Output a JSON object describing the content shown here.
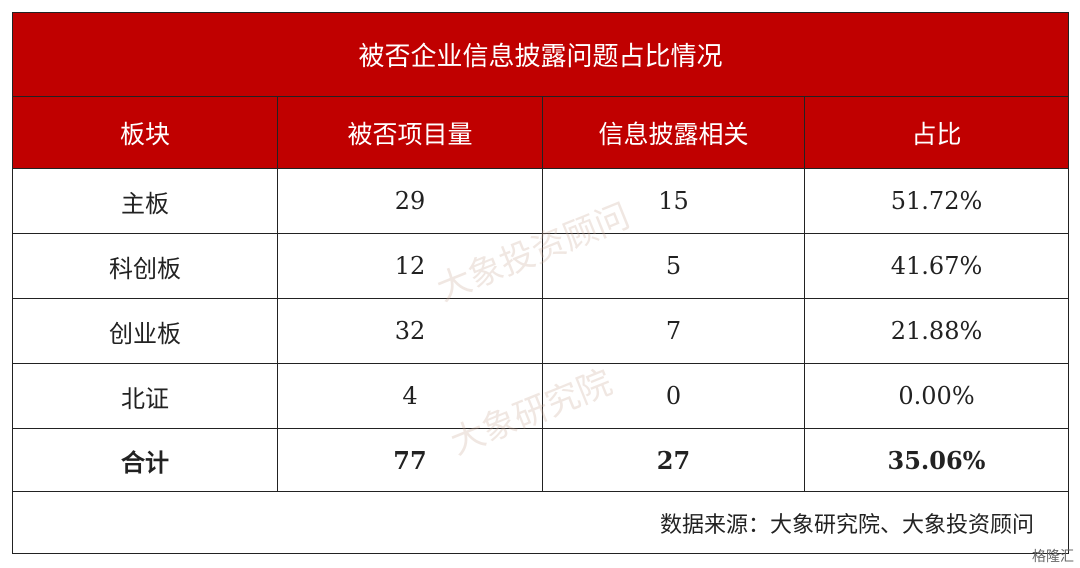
{
  "table": {
    "title": "被否企业信息披露问题占比情况",
    "header": [
      "板块",
      "被否项目量",
      "信息披露相关",
      "占比"
    ],
    "rows": [
      [
        "主板",
        "29",
        "15",
        "51.72%"
      ],
      [
        "科创板",
        "12",
        "5",
        "41.67%"
      ],
      [
        "创业板",
        "32",
        "7",
        "21.88%"
      ],
      [
        "北证",
        "4",
        "0",
        "0.00%"
      ],
      [
        "合计",
        "77",
        "27",
        "35.06%"
      ]
    ],
    "source": "数据来源：大象研究院、大象投资顾问"
  },
  "watermarks": [
    "大象投资顾问",
    "大象研究院"
  ],
  "logo": "格隆汇"
}
